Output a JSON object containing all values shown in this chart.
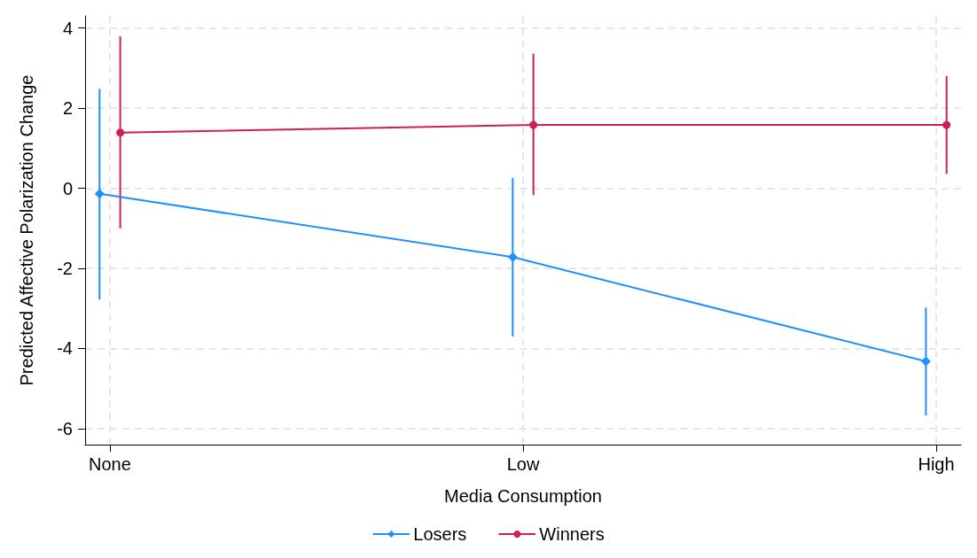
{
  "chart_data": {
    "type": "line",
    "xlabel": "Media Consumption",
    "ylabel": "Predicted Affective Polarization Change",
    "categories": [
      "None",
      "Low",
      "High"
    ],
    "ylim": [
      -6.4,
      4.3
    ],
    "yticks": [
      -6,
      -4,
      -2,
      0,
      2,
      4
    ],
    "grid": true,
    "legend": "bottom",
    "line_style": "solid",
    "series": [
      {
        "name": "Losers",
        "color": "#1e90ff",
        "marker": "diamond",
        "values": [
          -0.14,
          -1.72,
          -4.32
        ],
        "errors": [
          [
            -2.78,
            2.48
          ],
          [
            -3.7,
            0.26
          ],
          [
            -5.67,
            -2.98
          ]
        ]
      },
      {
        "name": "Winners",
        "color": "#d01c5a",
        "marker": "circle",
        "values": [
          1.39,
          1.58,
          1.58
        ],
        "errors": [
          [
            -1.0,
            3.79
          ],
          [
            -0.17,
            3.36
          ],
          [
            0.36,
            2.8
          ]
        ]
      }
    ]
  }
}
